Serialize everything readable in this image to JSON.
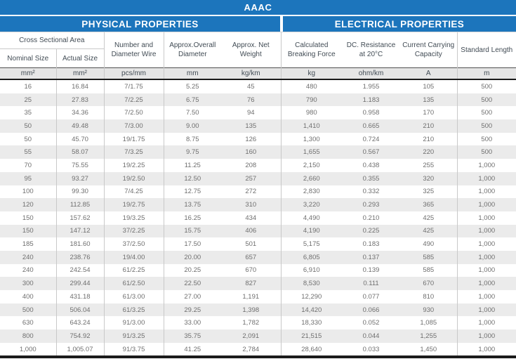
{
  "title": "AAAC",
  "sections": {
    "physical": "PHYSICAL PROPERTIES",
    "electrical": "ELECTRICAL PROPERTIES"
  },
  "header": {
    "cross_sectional_area": "Cross Sectional Area",
    "nominal_size": "Nominal Size",
    "actual_size": "Actual Size",
    "number_diameter_wire": "Number and Diameter Wire",
    "approx_overall_diameter": "Approx.Overall Diameter",
    "approx_net_weight": "Approx. Net Weight",
    "calculated_breaking_force": "Calculated Breaking Force",
    "dc_resistance": "DC. Resistance at 20°C",
    "current_carrying_capacity": "Current Carrying Capacity",
    "standard_length": "Standard Length"
  },
  "units": [
    "mm²",
    "mm²",
    "pcs/mm",
    "mm",
    "kg/km",
    "kg",
    "ohm/km",
    "A",
    "m"
  ],
  "rows": [
    [
      "16",
      "16.84",
      "7/1.75",
      "5.25",
      "45",
      "480",
      "1.955",
      "105",
      "500"
    ],
    [
      "25",
      "27.83",
      "7/2.25",
      "6.75",
      "76",
      "790",
      "1.183",
      "135",
      "500"
    ],
    [
      "35",
      "34.36",
      "7/2.50",
      "7.50",
      "94",
      "980",
      "0.958",
      "170",
      "500"
    ],
    [
      "50",
      "49.48",
      "7/3.00",
      "9.00",
      "135",
      "1,410",
      "0.665",
      "210",
      "500"
    ],
    [
      "50",
      "45.70",
      "19/1.75",
      "8.75",
      "126",
      "1,300",
      "0.724",
      "210",
      "500"
    ],
    [
      "55",
      "58.07",
      "7/3.25",
      "9.75",
      "160",
      "1,655",
      "0.567",
      "220",
      "500"
    ],
    [
      "70",
      "75.55",
      "19/2.25",
      "11.25",
      "208",
      "2,150",
      "0.438",
      "255",
      "1,000"
    ],
    [
      "95",
      "93.27",
      "19/2.50",
      "12.50",
      "257",
      "2,660",
      "0.355",
      "320",
      "1,000"
    ],
    [
      "100",
      "99.30",
      "7/4.25",
      "12.75",
      "272",
      "2,830",
      "0.332",
      "325",
      "1,000"
    ],
    [
      "120",
      "112.85",
      "19/2.75",
      "13.75",
      "310",
      "3,220",
      "0.293",
      "365",
      "1,000"
    ],
    [
      "150",
      "157.62",
      "19/3.25",
      "16.25",
      "434",
      "4,490",
      "0.210",
      "425",
      "1,000"
    ],
    [
      "150",
      "147.12",
      "37/2.25",
      "15.75",
      "406",
      "4,190",
      "0.225",
      "425",
      "1,000"
    ],
    [
      "185",
      "181.60",
      "37/2.50",
      "17.50",
      "501",
      "5,175",
      "0.183",
      "490",
      "1,000"
    ],
    [
      "240",
      "238.76",
      "19/4.00",
      "20.00",
      "657",
      "6,805",
      "0.137",
      "585",
      "1,000"
    ],
    [
      "240",
      "242.54",
      "61/2.25",
      "20.25",
      "670",
      "6,910",
      "0.139",
      "585",
      "1,000"
    ],
    [
      "300",
      "299.44",
      "61/2.50",
      "22.50",
      "827",
      "8,530",
      "0.111",
      "670",
      "1,000"
    ],
    [
      "400",
      "431.18",
      "61/3.00",
      "27.00",
      "1,191",
      "12,290",
      "0.077",
      "810",
      "1,000"
    ],
    [
      "500",
      "506.04",
      "61/3.25",
      "29.25",
      "1,398",
      "14,420",
      "0.066",
      "930",
      "1,000"
    ],
    [
      "630",
      "643.24",
      "91/3.00",
      "33.00",
      "1,782",
      "18,330",
      "0.052",
      "1,085",
      "1,000"
    ],
    [
      "800",
      "754.92",
      "91/3.25",
      "35.75",
      "2,091",
      "21,515",
      "0.044",
      "1,255",
      "1,000"
    ],
    [
      "1,000",
      "1,005.07",
      "91/3.75",
      "41.25",
      "2,784",
      "28,640",
      "0.033",
      "1,450",
      "1,000"
    ]
  ],
  "colors": {
    "accent_blue": "#1c75bc",
    "stripe_gray": "#ebebeb",
    "units_row_gray": "#e6e6e6",
    "dark_rule": "#1b1b1b"
  }
}
